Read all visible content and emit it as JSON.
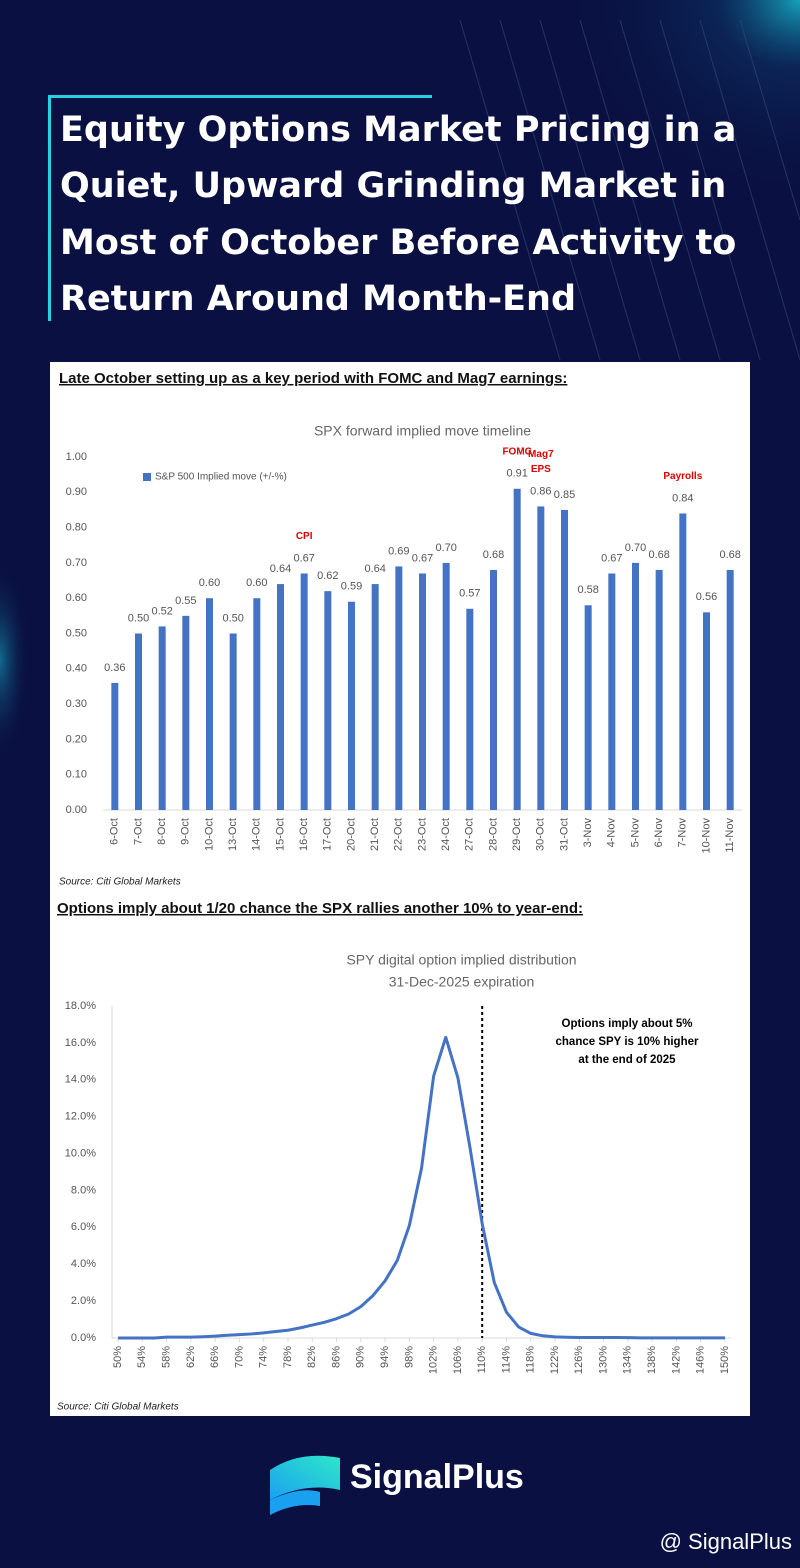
{
  "title_lines": [
    "Equity Options Market Pricing in a",
    "Quiet, Upward Grinding Market in",
    "Most of October Before Activity to",
    "Return Around Month-End"
  ],
  "headings": [
    "Late October setting up as a key period with FOMC and Mag7 earnings:",
    "Options imply about 1/20 chance the SPX rallies another 10% to year-end:"
  ],
  "sources": [
    "Source: Citi Global Markets",
    "Source: Citi Global Markets"
  ],
  "brand": "SignalPlus",
  "watermark": "@ SignalPlus",
  "chart_data": [
    {
      "type": "bar",
      "title": "SPX forward implied move timeline",
      "categories": [
        "6-Oct",
        "7-Oct",
        "8-Oct",
        "9-Oct",
        "10-Oct",
        "13-Oct",
        "14-Oct",
        "15-Oct",
        "16-Oct",
        "17-Oct",
        "20-Oct",
        "21-Oct",
        "22-Oct",
        "23-Oct",
        "24-Oct",
        "27-Oct",
        "28-Oct",
        "29-Oct",
        "30-Oct",
        "31-Oct",
        "3-Nov",
        "4-Nov",
        "5-Nov",
        "6-Nov",
        "7-Nov",
        "10-Nov",
        "11-Nov"
      ],
      "series": [
        {
          "name": "S&P 500 Implied move (+/-%)",
          "color": "#4472c4",
          "values": [
            0.36,
            0.5,
            0.52,
            0.55,
            0.6,
            0.5,
            0.6,
            0.64,
            0.67,
            0.62,
            0.59,
            0.64,
            0.69,
            0.67,
            0.7,
            0.57,
            0.68,
            0.91,
            0.86,
            0.85,
            0.58,
            0.67,
            0.7,
            0.68,
            0.84,
            0.56,
            0.68
          ],
          "value_labels": [
            "0.36",
            "0.50",
            "0.52",
            "0.55",
            "0.60",
            "0.50",
            "0.60",
            "0.64",
            "0.67",
            "0.62",
            "0.59",
            "0.64",
            "0.69",
            "0.67",
            "0.70",
            "0.57",
            "0.68",
            "0.91",
            "0.86",
            "0.85",
            "0.58",
            "0.67",
            "0.70",
            "0.68",
            "0.84",
            "0.56",
            "0.68"
          ]
        }
      ],
      "ylim": [
        0,
        1
      ],
      "yticks": [
        {
          "value": 0,
          "label": "0.00"
        },
        {
          "value": 0.1,
          "label": "0.10"
        },
        {
          "value": 0.2,
          "label": "0.20"
        },
        {
          "value": 0.3,
          "label": "0.30"
        },
        {
          "value": 0.4,
          "label": "0.40"
        },
        {
          "value": 0.5,
          "label": "0.50"
        },
        {
          "value": 0.6,
          "label": "0.60"
        },
        {
          "value": 0.7,
          "label": "0.70"
        },
        {
          "value": 0.8,
          "label": "0.80"
        },
        {
          "value": 0.9,
          "label": "0.90"
        },
        {
          "value": 1,
          "label": "1.00"
        }
      ],
      "grid": false,
      "legend": "top-left",
      "annotations": [
        {
          "lines": [
            "CPI"
          ],
          "x": "16-Oct",
          "color": "#e00000"
        },
        {
          "lines": [
            "FOMC"
          ],
          "x": "29-Oct",
          "color": "#e00000"
        },
        {
          "lines": [
            "Mag7",
            "EPS"
          ],
          "x": "30-Oct",
          "color": "#e00000"
        },
        {
          "lines": [
            "Payrolls"
          ],
          "x": "7-Nov",
          "color": "#e00000"
        }
      ]
    },
    {
      "type": "line",
      "title": "SPY digital option implied distribution",
      "subtitle": "31-Dec-2025 expiration",
      "x": [
        50,
        52,
        54,
        56,
        58,
        60,
        62,
        64,
        66,
        68,
        70,
        72,
        74,
        76,
        78,
        80,
        82,
        84,
        86,
        88,
        90,
        92,
        94,
        96,
        98,
        100,
        102,
        104,
        106,
        108,
        110,
        112,
        114,
        116,
        118,
        120,
        122,
        124,
        126,
        128,
        130,
        132,
        134,
        136,
        138,
        140,
        142,
        144,
        146,
        148,
        150
      ],
      "values": [
        0,
        0,
        0,
        0,
        0.05,
        0.05,
        0.05,
        0.07,
        0.1,
        0.15,
        0.18,
        0.22,
        0.28,
        0.35,
        0.42,
        0.55,
        0.7,
        0.85,
        1.05,
        1.3,
        1.7,
        2.3,
        3.1,
        4.2,
        6.1,
        9.2,
        14.2,
        16.3,
        14.1,
        10.3,
        6.2,
        3.0,
        1.4,
        0.6,
        0.25,
        0.12,
        0.06,
        0.04,
        0.03,
        0.03,
        0.03,
        0.03,
        0.02,
        0.01,
        0.01,
        0.01,
        0.01,
        0.01,
        0.01,
        0.01,
        0.01
      ],
      "color": "#4472c4",
      "xlim": [
        49,
        151
      ],
      "xticks": [
        {
          "value": 50,
          "label": "50%"
        },
        {
          "value": 54,
          "label": "54%"
        },
        {
          "value": 58,
          "label": "58%"
        },
        {
          "value": 62,
          "label": "62%"
        },
        {
          "value": 66,
          "label": "66%"
        },
        {
          "value": 70,
          "label": "70%"
        },
        {
          "value": 74,
          "label": "74%"
        },
        {
          "value": 78,
          "label": "78%"
        },
        {
          "value": 82,
          "label": "82%"
        },
        {
          "value": 86,
          "label": "86%"
        },
        {
          "value": 90,
          "label": "90%"
        },
        {
          "value": 94,
          "label": "94%"
        },
        {
          "value": 98,
          "label": "98%"
        },
        {
          "value": 102,
          "label": "102%"
        },
        {
          "value": 106,
          "label": "106%"
        },
        {
          "value": 110,
          "label": "110%"
        },
        {
          "value": 114,
          "label": "114%"
        },
        {
          "value": 118,
          "label": "118%"
        },
        {
          "value": 122,
          "label": "122%"
        },
        {
          "value": 126,
          "label": "126%"
        },
        {
          "value": 130,
          "label": "130%"
        },
        {
          "value": 134,
          "label": "134%"
        },
        {
          "value": 138,
          "label": "138%"
        },
        {
          "value": 142,
          "label": "142%"
        },
        {
          "value": 146,
          "label": "146%"
        },
        {
          "value": 150,
          "label": "150%"
        }
      ],
      "ylim": [
        0,
        18
      ],
      "yticks": [
        {
          "value": 0,
          "label": "0.0%"
        },
        {
          "value": 2,
          "label": "2.0%"
        },
        {
          "value": 4,
          "label": "4.0%"
        },
        {
          "value": 6,
          "label": "6.0%"
        },
        {
          "value": 8,
          "label": "8.0%"
        },
        {
          "value": 10,
          "label": "10.0%"
        },
        {
          "value": 12,
          "label": "12.0%"
        },
        {
          "value": 14,
          "label": "14.0%"
        },
        {
          "value": 16,
          "label": "16.0%"
        },
        {
          "value": 18,
          "label": "18.0%"
        }
      ],
      "grid": false,
      "reference_line": {
        "x": 110
      },
      "annotations": [
        {
          "lines": [
            "Options imply about 5%",
            "chance SPY is 10% higher",
            "at the end of 2025"
          ],
          "color": "#000000"
        }
      ]
    }
  ]
}
